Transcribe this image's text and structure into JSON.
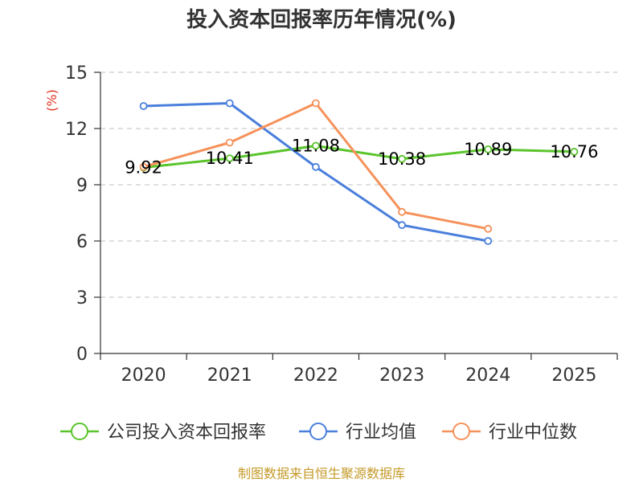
{
  "chart_data": {
    "type": "line",
    "title": "投入资本回报率历年情况(%)",
    "y_unit": "(%)",
    "categories": [
      "2020",
      "2021",
      "2022",
      "2023",
      "2024",
      "2025"
    ],
    "ylim": [
      0,
      15
    ],
    "yticks": [
      0,
      3,
      6,
      9,
      12,
      15
    ],
    "grid": true,
    "legend_position": "bottom",
    "series": [
      {
        "name": "公司投入资本回报率",
        "color": "#5ac42b",
        "values": [
          9.92,
          10.41,
          11.08,
          10.38,
          10.89,
          10.76
        ],
        "labels": [
          "9.92",
          "10.41",
          "11.08",
          "10.38",
          "10.89",
          "10.76"
        ]
      },
      {
        "name": "行业均值",
        "color": "#4a7fdc",
        "values": [
          13.2,
          13.35,
          9.95,
          6.85,
          6.0,
          null
        ]
      },
      {
        "name": "行业中位数",
        "color": "#f6915a",
        "values": [
          9.95,
          11.25,
          13.35,
          7.55,
          6.65,
          null
        ]
      }
    ],
    "source": "制图数据来自恒生聚源数据库"
  }
}
